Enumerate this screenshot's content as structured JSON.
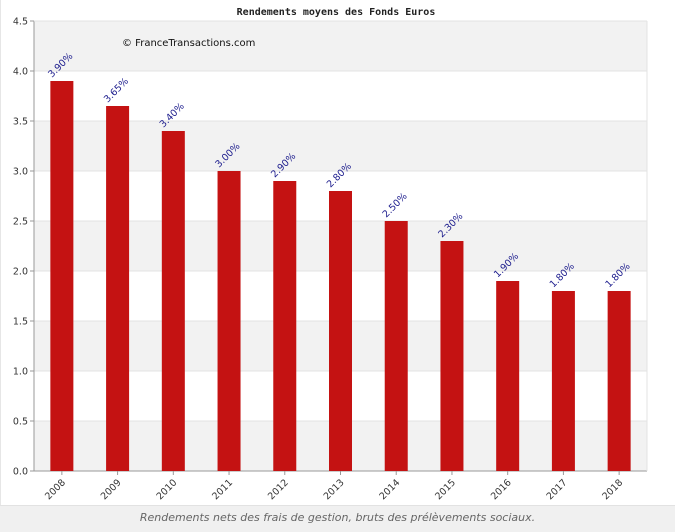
{
  "chart_data": {
    "type": "bar",
    "title": "Rendements moyens des Fonds Euros",
    "watermark": "© FranceTransactions.com",
    "categories": [
      "2008",
      "2009",
      "2010",
      "2011",
      "2012",
      "2013",
      "2014",
      "2015",
      "2016",
      "2017",
      "2018"
    ],
    "values": [
      3.9,
      3.65,
      3.4,
      3.0,
      2.9,
      2.8,
      2.5,
      2.3,
      1.9,
      1.8,
      1.8
    ],
    "data_labels": [
      "3.90%",
      "3.65%",
      "3.40%",
      "3.00%",
      "2.90%",
      "2.80%",
      "2.50%",
      "2.30%",
      "1.90%",
      "1.80%",
      "1.80%"
    ],
    "ylim": [
      0,
      4.5
    ],
    "yticks": [
      "0.0",
      "0.5",
      "1.0",
      "1.5",
      "2.0",
      "2.5",
      "3.0",
      "3.5",
      "4.0",
      "4.5"
    ],
    "xlabel": "",
    "ylabel": "",
    "grid": true,
    "bar_color": "#c41212",
    "label_color": "#1a1a8c",
    "band_color": "#f2f2f2"
  },
  "caption": "Rendements nets des frais de gestion, bruts des prélèvements sociaux."
}
